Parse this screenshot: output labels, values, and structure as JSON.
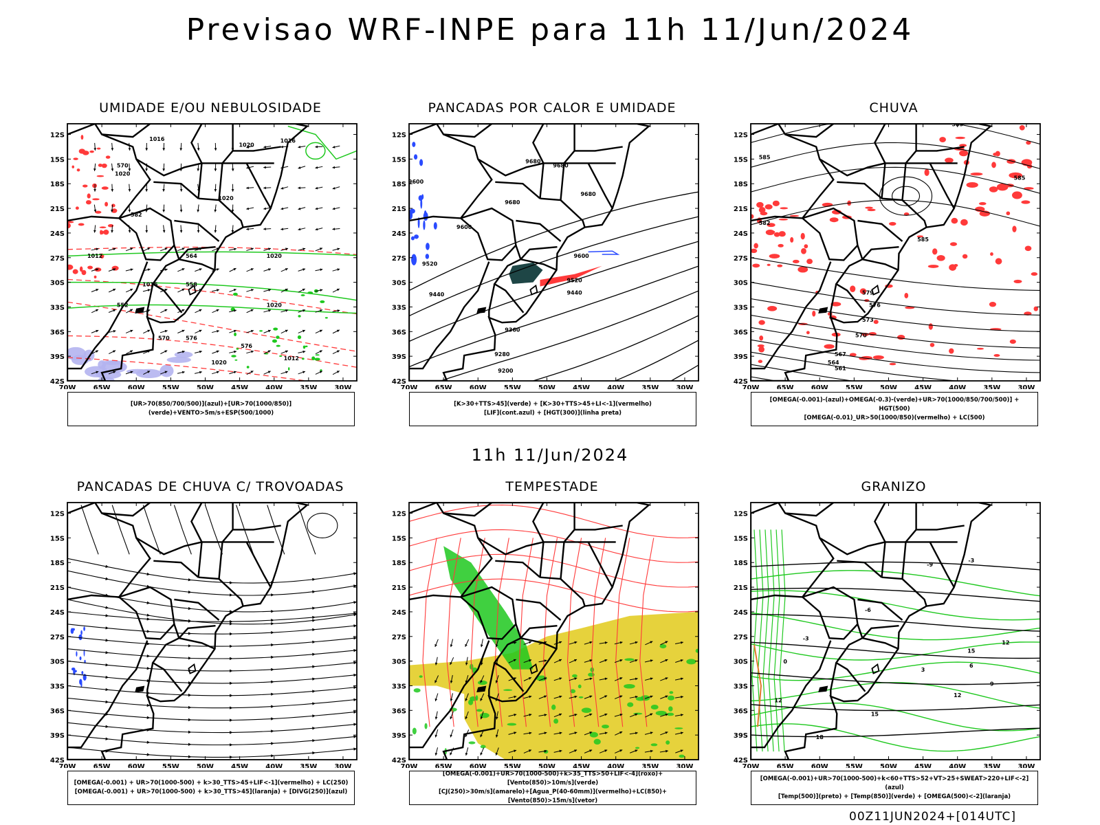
{
  "header": {
    "title": "Previsao WRF-INPE  para 11h 11/Jun/2024",
    "subtitle": "11h 11/Jun/2024",
    "footer": "00Z11JUN2024+[014UTC]"
  },
  "axes": {
    "lat_labels": [
      "12S",
      "15S",
      "18S",
      "21S",
      "24S",
      "27S",
      "30S",
      "33S",
      "36S",
      "39S",
      "42S"
    ],
    "lon_labels": [
      "70W",
      "65W",
      "60W",
      "55W",
      "50W",
      "45W",
      "40W",
      "35W",
      "30W"
    ]
  },
  "colors": {
    "black": "#000000",
    "red": "#ff3a3a",
    "green": "#1ec81e",
    "blue": "#2a4bff",
    "lavender": "#b4b4f0",
    "yellow": "#e6d23c",
    "darkteal": "#1e4646",
    "orange": "#e07a2a"
  },
  "panels": [
    {
      "title": "UMIDADE E/OU NEBULOSIDADE",
      "legend": [
        "[UR>70(850/700/500)](azul)+[UR>70(1000/850)](verde)+VENTO>5m/s+ESP(500/1000)"
      ],
      "labels": [
        "1016",
        "1020",
        "1020",
        "1016",
        "1020",
        "1012",
        "1020",
        "1016",
        "1020",
        "1012",
        "1020",
        "576",
        "570",
        "564",
        "558",
        "552",
        "570",
        "576",
        "582"
      ]
    },
    {
      "title": "PANCADAS POR CALOR E UMIDADE",
      "legend": [
        "[K>30+TTS>45](verde) + [K>30+TTS>45+LI<-1](vermelho)",
        "[LIF](cont.azul) + [HGT(300)](linha preta)"
      ],
      "labels": [
        "9680",
        "9680",
        "9600",
        "9680",
        "9600",
        "9680",
        "9520",
        "9440",
        "9520",
        "9440",
        "9360",
        "9280",
        "9200",
        "9600"
      ]
    },
    {
      "title": "CHUVA",
      "legend": [
        "[OMEGA(-0.001)-(azul)+OMEGA(-0.3)-(verde)+UR>70(1000/850/700/500)] + HGT(500)",
        "[OMEGA(-0.01)_UR>50(1000/850)(vermelho) + LC(500)"
      ],
      "labels": [
        "585",
        "585",
        "585",
        "582",
        "585",
        "579",
        "576",
        "573",
        "570",
        "567",
        "564",
        "561"
      ]
    },
    {
      "title": "PANCADAS DE CHUVA C/ TROVOADAS",
      "legend": [
        "[OMEGA(-0.001) + UR>70(1000-500) + k>30_TTS>45+LIF<-1](vermelho) + LC(250)",
        "[OMEGA(-0.001) + UR>70(1000-500) + k>30_TTS>45](laranja) + [DIVG(250)](azul)"
      ],
      "labels": []
    },
    {
      "title": "TEMPESTADE",
      "legend": [
        "[OMEGA(-0.001)+UR>70(1000-500)+k>35_TTS>50+LIF<-4](roxo)+[Vento(850)>10m/s](verde)",
        "[CJ(250)>30m/s](amarelo)+[Agua_P(40-60mm)](vermelho)+LC(850)+[Vento(850)>15m/s](vetor)"
      ],
      "labels": []
    },
    {
      "title": "GRANIZO",
      "legend": [
        "[OMEGA(-0.001)+UR>70(1000-500)+k<60+TTS>52+VT>25+SWEAT>220+LIF<-2](azul)",
        "[Temp(500)](preto) + [Temp(850)](verde) + [OMEGA(500)<-2](laranja)"
      ],
      "labels": [
        "-9",
        "-6",
        "-3",
        "0",
        "3",
        "6",
        "9",
        "12",
        "15",
        "18",
        "12",
        "15",
        "12",
        "-3"
      ]
    }
  ]
}
